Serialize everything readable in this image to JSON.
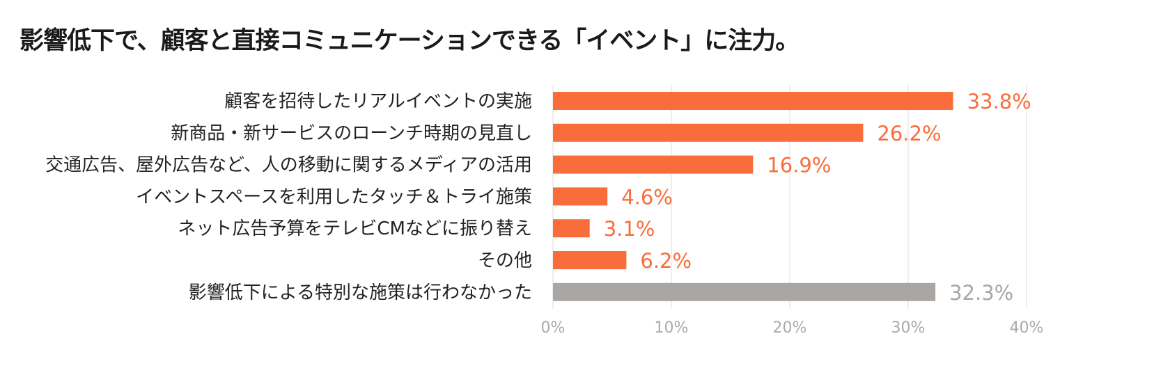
{
  "title": "影響低下で、顧客と直接コミュニケーションできる「イベント」に注力。",
  "chart_data": {
    "type": "bar",
    "orientation": "horizontal",
    "title": "影響低下で、顧客と直接コミュニケーションできる「イベント」に注力。",
    "categories": [
      "顧客を招待したリアルイベントの実施",
      "新商品・新サービスのローンチ時期の見直し",
      "交通広告、屋外広告など、人の移動に関するメディアの活用",
      "イベントスペースを利用したタッチ＆トライ施策",
      "ネット広告予算をテレビCMなどに振り替え",
      "その他",
      "影響低下による特別な施策は行わなかった"
    ],
    "values": [
      33.8,
      26.2,
      16.9,
      4.6,
      3.1,
      6.2,
      32.3
    ],
    "value_labels": [
      "33.8%",
      "26.2%",
      "16.9%",
      "4.6%",
      "3.1%",
      "6.2%",
      "32.3%"
    ],
    "bar_colors": [
      "#f96d3a",
      "#f96d3a",
      "#f96d3a",
      "#f96d3a",
      "#f96d3a",
      "#f96d3a",
      "#aaa6a3"
    ],
    "label_colors": [
      "#f96d3a",
      "#f96d3a",
      "#f96d3a",
      "#f96d3a",
      "#f96d3a",
      "#f96d3a",
      "#aaa6a3"
    ],
    "xlim": [
      0,
      40
    ],
    "xticks": [
      0,
      10,
      20,
      30,
      40
    ],
    "xtick_labels": [
      "0%",
      "10%",
      "20%",
      "30%",
      "40%"
    ],
    "grid": true,
    "legend": "none"
  }
}
